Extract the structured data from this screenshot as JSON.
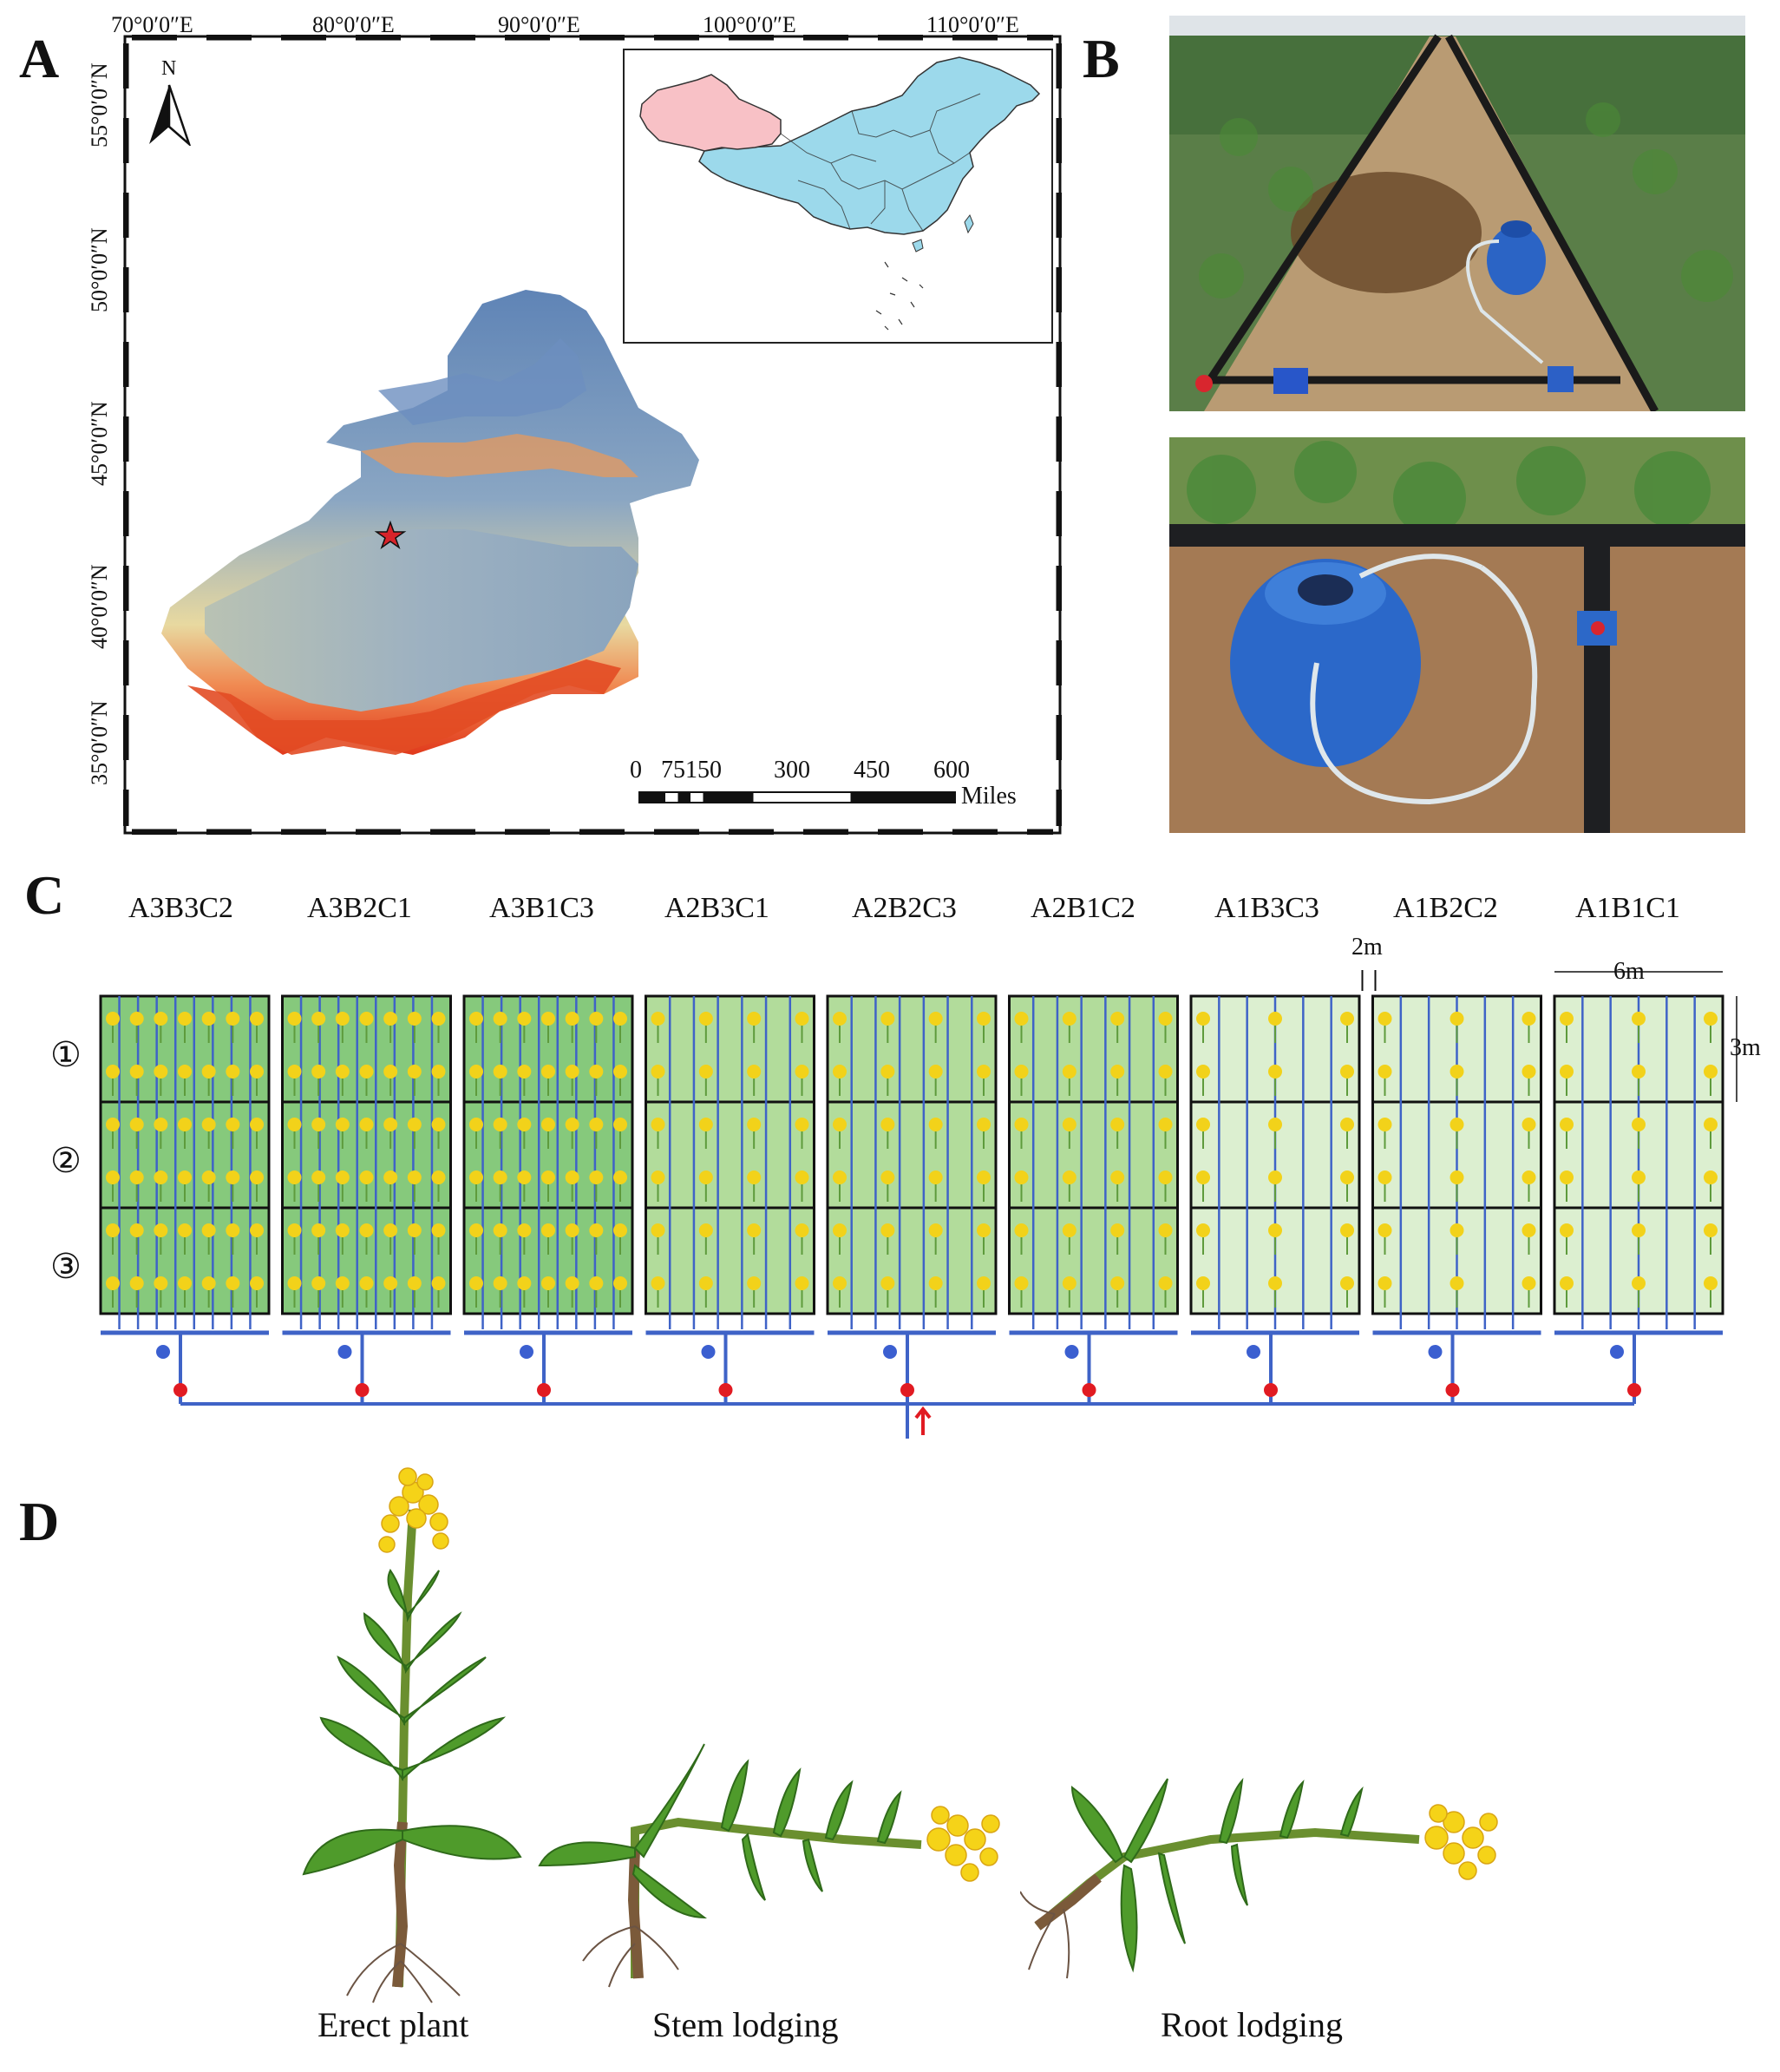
{
  "panels": {
    "a": "A",
    "b": "B",
    "c": "C",
    "d": "D"
  },
  "map": {
    "longitudes": [
      "70°0′0″E",
      "80°0′0″E",
      "90°0′0″E",
      "100°0′0″E",
      "110°0′0″E"
    ],
    "latitudes": [
      "55°0′0″N",
      "50°0′0″N",
      "45°0′0″N",
      "40°0′0″N",
      "35°0′0″N"
    ],
    "north": "N",
    "scale": {
      "ticks": [
        "0",
        "75150",
        "300",
        "450",
        "600"
      ],
      "unit": "Miles"
    },
    "colors": {
      "highlight": "#f8c1c6",
      "rest": "#9cd9eb",
      "relief_low": "#5f84b6",
      "relief_high": "#e13a1c",
      "site": "#d8232a"
    }
  },
  "layout": {
    "plots": [
      "A3B3C2",
      "A3B2C1",
      "A3B1C3",
      "A2B3C1",
      "A2B2C3",
      "A2B1C2",
      "A1B3C3",
      "A1B2C2",
      "A1B1C1"
    ],
    "replicates": [
      "①",
      "②",
      "③"
    ],
    "dims": {
      "gap": "2m",
      "width": "6m",
      "height": "3m"
    },
    "colors": {
      "pipe": "#3f63c7",
      "valve": "#e11b22",
      "meter": "#3b5fd0",
      "dense": "#86c97c",
      "medium": "#b2dc9b",
      "sparse": "#dcefd0",
      "flower": "#f2d21a"
    }
  },
  "plants": {
    "captions": [
      "Erect plant",
      "Stem lodging",
      "Root lodging"
    ]
  }
}
